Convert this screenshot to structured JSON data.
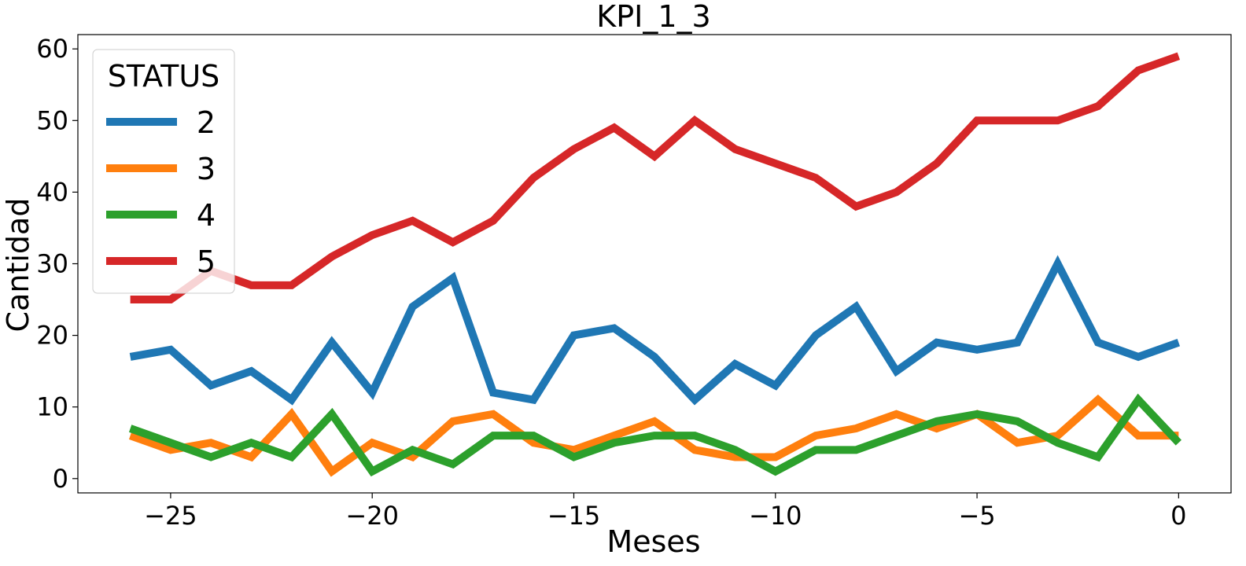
{
  "chart_data": {
    "type": "line",
    "title": "KPI_1_3",
    "xlabel": "Meses",
    "ylabel": "Cantidad",
    "xlim": [
      -27.3,
      1.3
    ],
    "ylim": [
      -2,
      62
    ],
    "xticks": [
      -25,
      -20,
      -15,
      -10,
      -5,
      0
    ],
    "xtick_labels": [
      "−25",
      "−20",
      "−15",
      "−10",
      "−5",
      "0"
    ],
    "yticks": [
      0,
      10,
      20,
      30,
      40,
      50,
      60
    ],
    "ytick_labels": [
      "0",
      "10",
      "20",
      "30",
      "40",
      "50",
      "60"
    ],
    "grid": false,
    "legend": {
      "title": "STATUS",
      "placement": "upper-left"
    },
    "x": [
      -26,
      -25,
      -24,
      -23,
      -22,
      -21,
      -20,
      -19,
      -18,
      -17,
      -16,
      -15,
      -14,
      -13,
      -12,
      -11,
      -10,
      -9,
      -8,
      -7,
      -6,
      -5,
      -4,
      -3,
      -2,
      -1,
      0
    ],
    "series": [
      {
        "name": "2",
        "color": "#1f77b4",
        "values": [
          17,
          18,
          13,
          15,
          11,
          19,
          12,
          24,
          28,
          12,
          11,
          20,
          21,
          17,
          11,
          16,
          13,
          20,
          24,
          15,
          19,
          18,
          19,
          30,
          19,
          17,
          19
        ]
      },
      {
        "name": "3",
        "color": "#ff7f0e",
        "values": [
          6,
          4,
          5,
          3,
          9,
          1,
          5,
          3,
          8,
          9,
          5,
          4,
          6,
          8,
          4,
          3,
          3,
          6,
          7,
          9,
          7,
          9,
          5,
          6,
          11,
          6,
          6
        ]
      },
      {
        "name": "4",
        "color": "#2ca02c",
        "values": [
          7,
          5,
          3,
          5,
          3,
          9,
          1,
          4,
          2,
          6,
          6,
          3,
          5,
          6,
          6,
          4,
          1,
          4,
          4,
          6,
          8,
          9,
          8,
          5,
          3,
          11,
          5
        ]
      },
      {
        "name": "5",
        "color": "#d62728",
        "values": [
          25,
          25,
          29,
          27,
          27,
          31,
          34,
          36,
          33,
          36,
          42,
          46,
          49,
          45,
          50,
          46,
          44,
          42,
          38,
          40,
          44,
          50,
          50,
          50,
          52,
          57,
          59
        ]
      }
    ]
  }
}
